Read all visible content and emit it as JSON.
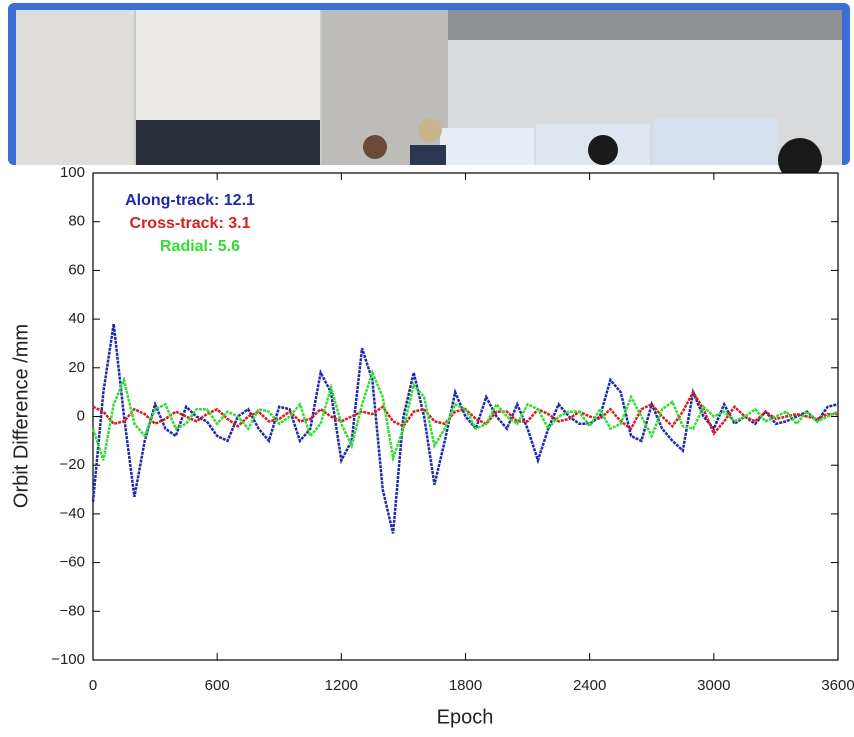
{
  "chart_data": {
    "type": "line",
    "xlabel": "Epoch",
    "ylabel": "Orbit Difference /mm",
    "xlim": [
      0,
      3600
    ],
    "xticks": [
      0,
      600,
      1200,
      1800,
      2400,
      3000,
      3600
    ],
    "ylim": [
      -100,
      100
    ],
    "yticks": [
      {
        "value": -100,
        "label": "−100"
      },
      {
        "value": -80,
        "label": "−80"
      },
      {
        "value": -60,
        "label": "−60"
      },
      {
        "value": -40,
        "label": "−40"
      },
      {
        "value": -20,
        "label": "−20"
      },
      0,
      20,
      40,
      60,
      80,
      100
    ],
    "x": [
      0,
      50,
      100,
      150,
      200,
      250,
      300,
      350,
      400,
      450,
      500,
      550,
      600,
      650,
      700,
      750,
      800,
      850,
      900,
      950,
      1000,
      1050,
      1100,
      1150,
      1200,
      1250,
      1300,
      1350,
      1400,
      1450,
      1500,
      1550,
      1600,
      1650,
      1700,
      1750,
      1800,
      1850,
      1900,
      1950,
      2000,
      2050,
      2100,
      2150,
      2200,
      2250,
      2300,
      2350,
      2400,
      2450,
      2500,
      2550,
      2600,
      2650,
      2700,
      2750,
      2800,
      2850,
      2900,
      2950,
      3000,
      3050,
      3100,
      3150,
      3200,
      3250,
      3300,
      3350,
      3400,
      3450,
      3500,
      3550,
      3600
    ],
    "series": [
      {
        "name": "Along-track: 12.1",
        "color": "#1f2aa8",
        "values": [
          -35,
          10,
          38,
          0,
          -33,
          -10,
          5,
          -5,
          -8,
          4,
          0,
          -2,
          -8,
          -10,
          0,
          3,
          -5,
          -10,
          4,
          3,
          -10,
          -5,
          18,
          10,
          -18,
          -10,
          28,
          15,
          -30,
          -48,
          0,
          18,
          0,
          -28,
          -10,
          10,
          0,
          -5,
          8,
          0,
          -5,
          5,
          -5,
          -18,
          -5,
          5,
          0,
          -3,
          -3,
          0,
          15,
          10,
          -8,
          -10,
          5,
          -5,
          -10,
          -14,
          10,
          0,
          -5,
          5,
          -3,
          0,
          -3,
          2,
          -3,
          -2,
          0,
          2,
          -2,
          4,
          5
        ]
      },
      {
        "name": "Cross-track: 3.1",
        "color": "#d42020",
        "values": [
          4,
          2,
          -3,
          -2,
          3,
          1,
          -3,
          -1,
          2,
          0,
          -2,
          1,
          3,
          -1,
          -4,
          0,
          2,
          -2,
          -1,
          2,
          -2,
          -1,
          3,
          0,
          -2,
          0,
          2,
          1,
          4,
          -2,
          -4,
          2,
          3,
          -2,
          -3,
          2,
          3,
          -1,
          -3,
          2,
          2,
          -2,
          -2,
          3,
          1,
          -2,
          -1,
          2,
          0,
          -1,
          3,
          -2,
          -5,
          3,
          5,
          0,
          -4,
          2,
          10,
          3,
          -7,
          -2,
          4,
          0,
          -2,
          2,
          -1,
          0,
          1,
          0,
          -1,
          1,
          1
        ]
      },
      {
        "name": "Radial: 5.6",
        "color": "#33dd33",
        "values": [
          -5,
          -18,
          5,
          15,
          -3,
          -8,
          3,
          5,
          -5,
          -3,
          3,
          3,
          -3,
          2,
          0,
          -5,
          3,
          2,
          -3,
          0,
          5,
          -8,
          -3,
          12,
          -3,
          -12,
          5,
          18,
          8,
          -17,
          -5,
          13,
          8,
          -12,
          -5,
          5,
          3,
          -5,
          -3,
          5,
          0,
          -3,
          5,
          3,
          -5,
          0,
          2,
          2,
          -4,
          3,
          -5,
          -3,
          8,
          0,
          -8,
          3,
          6,
          -4,
          -5,
          4,
          0,
          2,
          -2,
          0,
          3,
          -2,
          0,
          2,
          -3,
          2,
          -2,
          0,
          2
        ]
      }
    ]
  }
}
